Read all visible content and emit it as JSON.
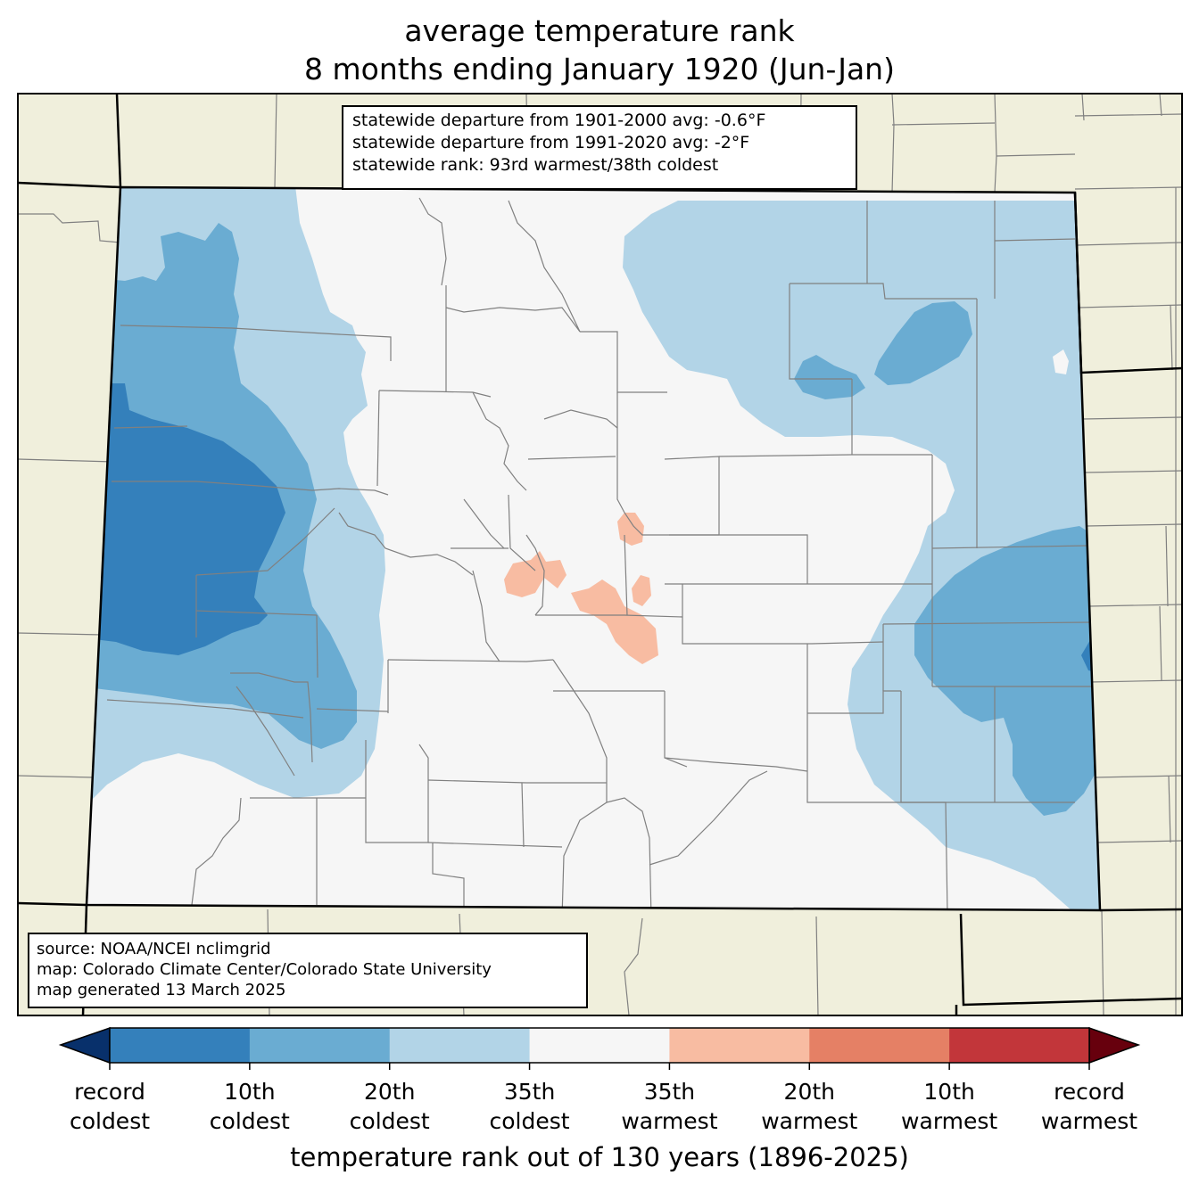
{
  "title": {
    "line1": "average temperature rank",
    "line2": "8 months ending January 1920 (Jun-Jan)"
  },
  "stats": {
    "line1": "statewide departure from 1901-2000 avg: -0.6°F",
    "line2": "statewide departure from 1991-2020 avg: -2°F",
    "line3": "statewide rank: 93rd warmest/38th coldest"
  },
  "source": {
    "line1": "source: NOAA/NCEI nclimgrid",
    "line2": "map: Colorado Climate Center/Colorado State University",
    "line3": "map generated 13 March 2025"
  },
  "colorbar": {
    "label": "temperature rank out of 130 years (1896-2025)",
    "under_color": "#08306b",
    "over_color": "#67000d",
    "bins": [
      {
        "color": "#3480bb"
      },
      {
        "color": "#6aacd2"
      },
      {
        "color": "#b2d4e7"
      },
      {
        "color": "#f6f6f6"
      },
      {
        "color": "#f8bca2"
      },
      {
        "color": "#e58065"
      },
      {
        "color": "#c2363a"
      }
    ],
    "ticks": [
      {
        "line1": "record",
        "line2": "coldest"
      },
      {
        "line1": "10th",
        "line2": "coldest"
      },
      {
        "line1": "20th",
        "line2": "coldest"
      },
      {
        "line1": "35th",
        "line2": "coldest"
      },
      {
        "line1": "35th",
        "line2": "warmest"
      },
      {
        "line1": "20th",
        "line2": "warmest"
      },
      {
        "line1": "10th",
        "line2": "warmest"
      },
      {
        "line1": "record",
        "line2": "warmest"
      }
    ]
  },
  "colors": {
    "land": "#f0efdc",
    "county_line": "#808080",
    "state_line": "#000000"
  }
}
